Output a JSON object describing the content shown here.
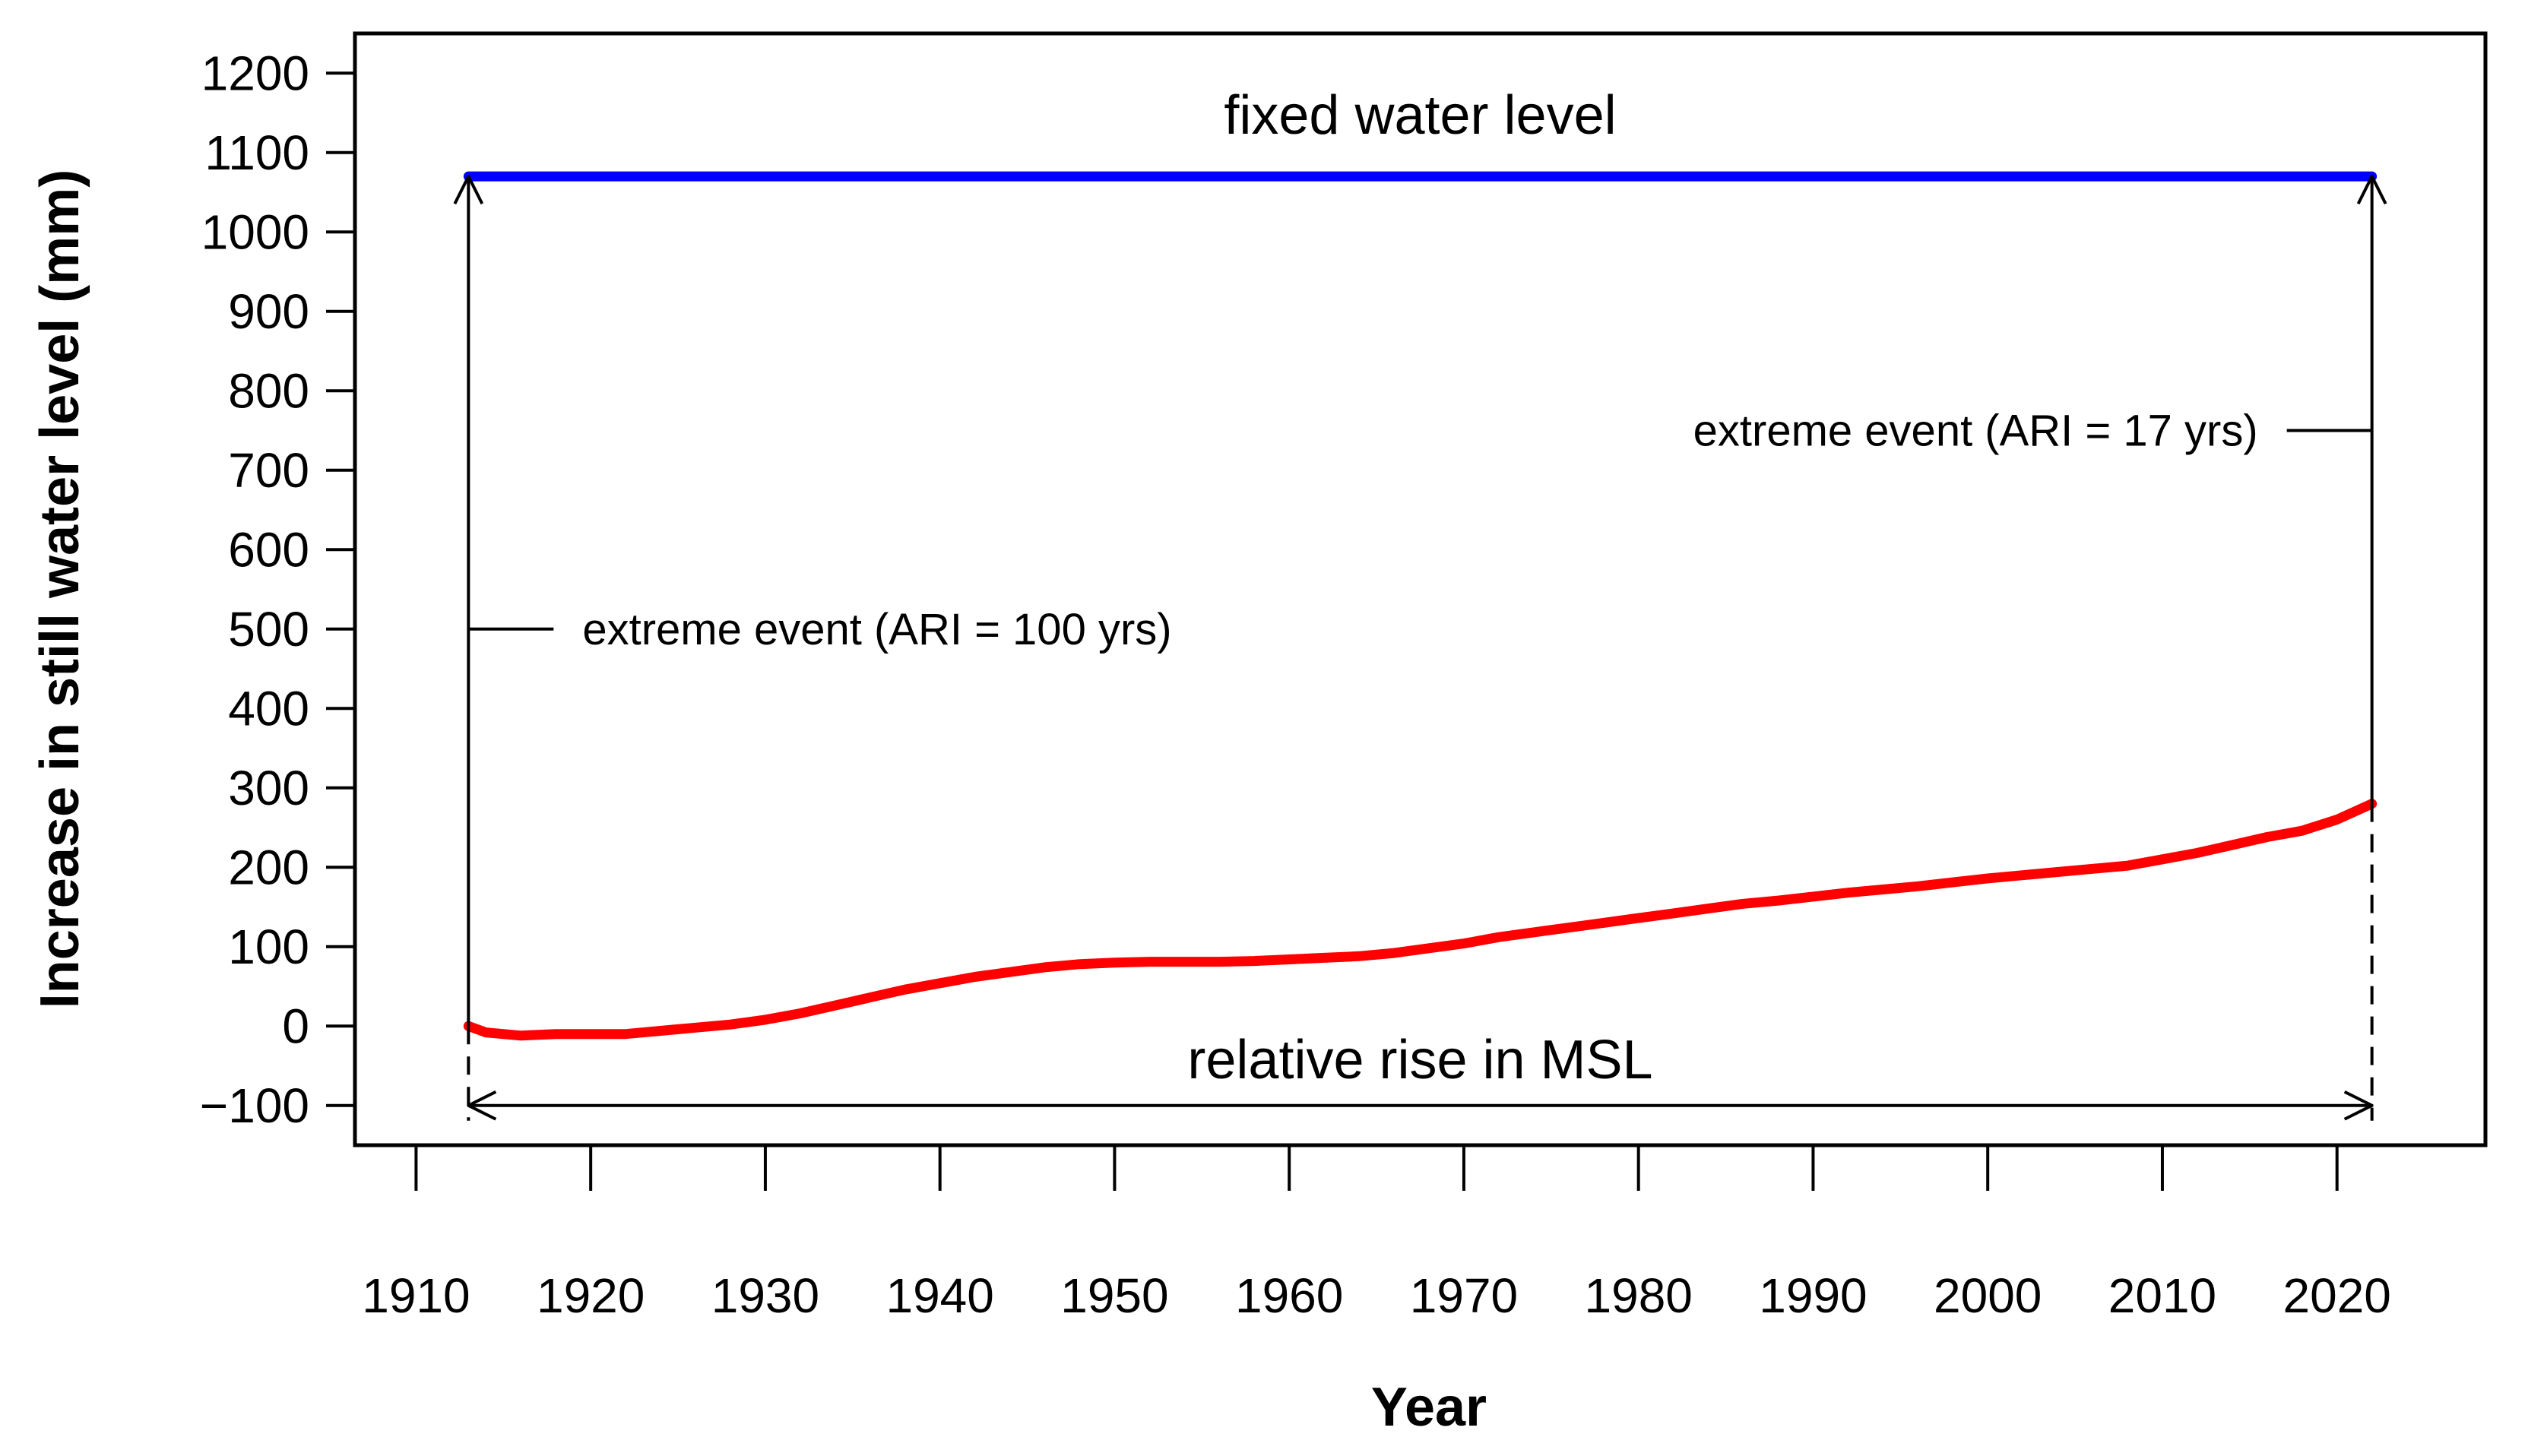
{
  "chart_data": {
    "type": "line",
    "title": "",
    "xlabel": "Year",
    "ylabel": "Increase in still water level (mm)",
    "xlim": [
      1906.5,
      2028.5
    ],
    "ylim": [
      -150,
      1250
    ],
    "x_ticks": [
      1910,
      1920,
      1930,
      1940,
      1950,
      1960,
      1970,
      1980,
      1990,
      2000,
      2010,
      2020
    ],
    "y_ticks": [
      -100,
      0,
      100,
      200,
      300,
      400,
      500,
      600,
      700,
      800,
      900,
      1000,
      1100,
      1200
    ],
    "grid": false,
    "series": [
      {
        "name": "relative rise in MSL",
        "color": "#ff0000",
        "x": [
          1913,
          1914,
          1916,
          1918,
          1920,
          1922,
          1924,
          1926,
          1928,
          1930,
          1932,
          1934,
          1936,
          1938,
          1940,
          1942,
          1944,
          1946,
          1948,
          1950,
          1952,
          1954,
          1956,
          1958,
          1960,
          1962,
          1964,
          1966,
          1968,
          1970,
          1972,
          1974,
          1976,
          1978,
          1980,
          1982,
          1984,
          1986,
          1988,
          1990,
          1992,
          1994,
          1996,
          1998,
          2000,
          2002,
          2004,
          2006,
          2008,
          2010,
          2012,
          2014,
          2016,
          2018,
          2020,
          2022
        ],
        "values": [
          0,
          -8,
          -12,
          -10,
          -10,
          -10,
          -6,
          -2,
          2,
          8,
          16,
          26,
          36,
          46,
          54,
          62,
          68,
          74,
          78,
          80,
          81,
          81,
          81,
          82,
          84,
          86,
          88,
          92,
          98,
          104,
          112,
          118,
          124,
          130,
          136,
          142,
          148,
          154,
          158,
          163,
          168,
          172,
          176,
          181,
          186,
          190,
          194,
          198,
          202,
          210,
          218,
          228,
          238,
          246,
          260,
          280
        ]
      },
      {
        "name": "fixed water level",
        "color": "#0000ff",
        "x": [
          1913,
          2022
        ],
        "values": [
          1070,
          1070
        ]
      }
    ],
    "annotations": {
      "fixed_level_label": "fixed water level",
      "msl_label": "relative rise in MSL",
      "event_100_label": "extreme event (ARI = 100 yrs)",
      "event_17_label": "extreme event (ARI = 17 yrs)"
    },
    "arrows": {
      "start_year": 1913,
      "end_year": 2022,
      "fixed_level": 1070,
      "msl_arrow_level": -100,
      "start_msl": 0,
      "end_msl": 280,
      "event_100_tick_level": 500,
      "event_17_tick_level": 750
    }
  }
}
